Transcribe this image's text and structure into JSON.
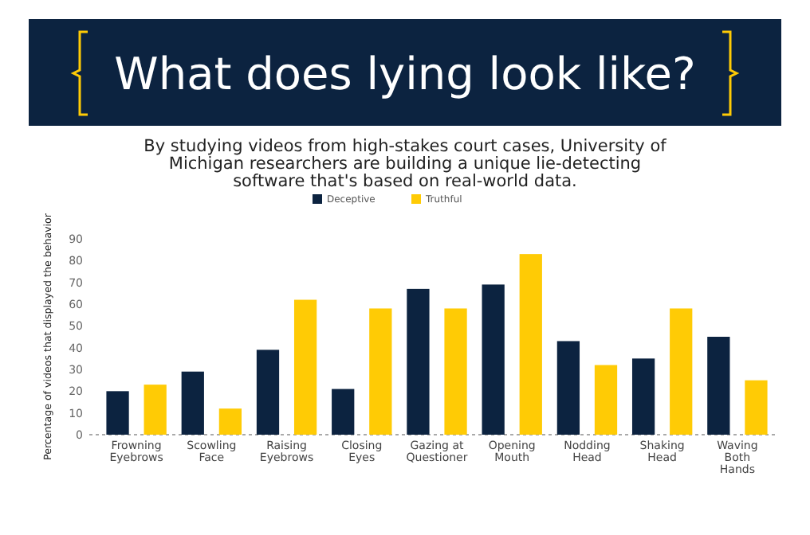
{
  "chart_data": {
    "type": "bar",
    "title": "What does lying look like?",
    "subtitle": "By studying videos from high-stakes court cases, University of Michigan researchers are building a unique lie-detecting software that's based on real-world data.",
    "ylabel": "Percentage of videos that displayed the behavior",
    "categories": [
      "Frowning Eyebrows",
      "Scowling Face",
      "Raising Eyebrows",
      "Closing Eyes",
      "Gazing at Questioner",
      "Opening Mouth",
      "Nodding Head",
      "Shaking Head",
      "Waving Both Hands"
    ],
    "series": [
      {
        "name": "Deceptive",
        "color": "#0c2340",
        "values": [
          20,
          29,
          39,
          21,
          67,
          69,
          43,
          35,
          45
        ]
      },
      {
        "name": "Truthful",
        "color": "#ffcb05",
        "values": [
          23,
          12,
          62,
          58,
          58,
          83,
          32,
          58,
          25
        ]
      }
    ],
    "ylim": [
      0,
      90
    ],
    "yticks": [
      0,
      10,
      20,
      30,
      40,
      50,
      60,
      70,
      80,
      90
    ],
    "grid": false,
    "legend": "top"
  }
}
